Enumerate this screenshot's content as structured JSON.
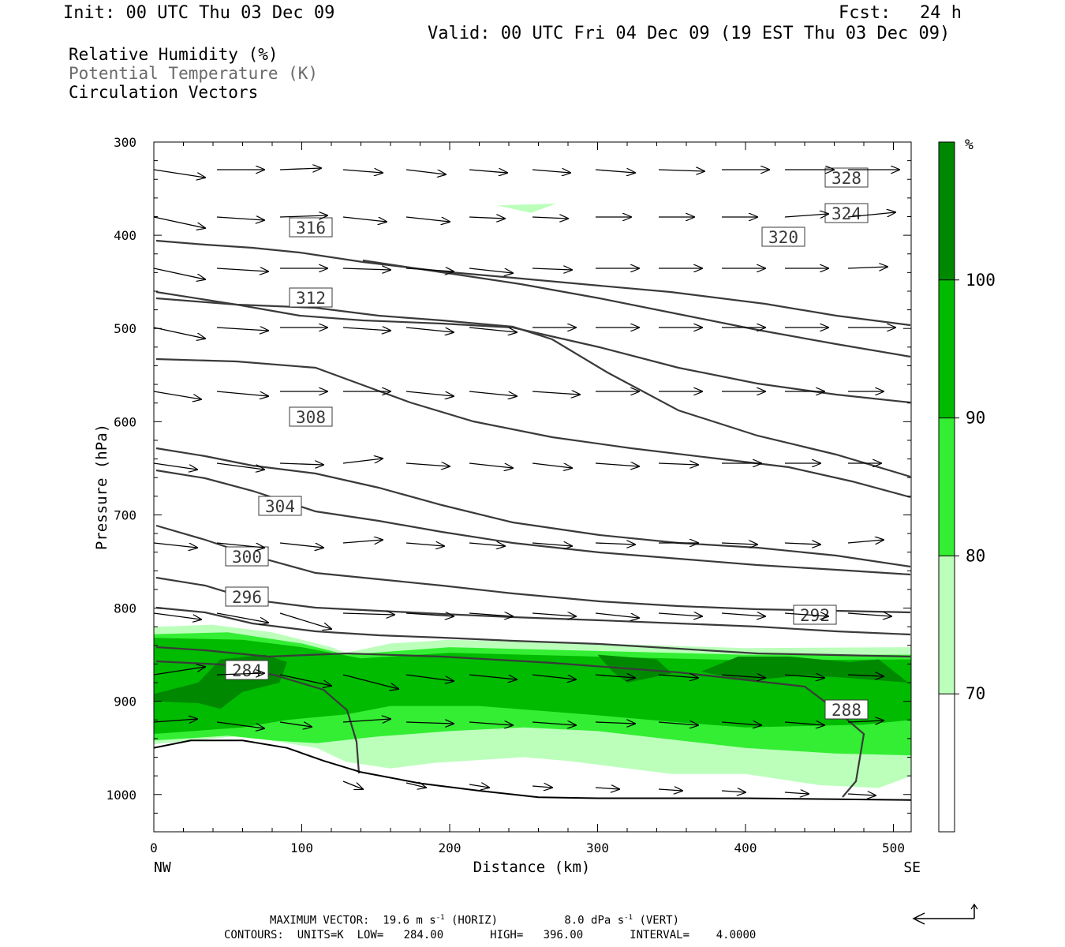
{
  "header": {
    "init": "Init: 00 UTC Thu 03 Dec 09",
    "fcst_label": "Fcst:",
    "fcst_value": "24 h",
    "valid": "Valid: 00 UTC Fri 04 Dec 09 (19 EST Thu 03 Dec 09)"
  },
  "fields": [
    "Relative Humidity (%)",
    "Potential Temperature (K)",
    "Circulation Vectors"
  ],
  "colorbar": {
    "unit": "%",
    "levels": [
      70,
      80,
      90,
      100
    ],
    "colors": [
      "#ffffff",
      "#bbffbb",
      "#33ee33",
      "#00bb00",
      "#008800"
    ]
  },
  "chart_data": {
    "type": "cross-section",
    "xlabel": "Distance (km)",
    "ylabel": "Pressure (hPa)",
    "xlim": [
      0,
      512
    ],
    "ylim": [
      1040,
      300
    ],
    "x_ticks": [
      0,
      100,
      200,
      300,
      400,
      500
    ],
    "y_ticks": [
      300,
      400,
      500,
      600,
      700,
      800,
      900,
      1000
    ],
    "x_end_labels": {
      "left": "NW",
      "right": "SE"
    },
    "surface": [
      [
        0,
        950
      ],
      [
        25,
        942
      ],
      [
        60,
        942
      ],
      [
        90,
        950
      ],
      [
        115,
        964
      ],
      [
        140,
        976
      ],
      [
        180,
        988
      ],
      [
        220,
        996
      ],
      [
        260,
        1003
      ],
      [
        300,
        1004
      ],
      [
        400,
        1004
      ],
      [
        512,
        1006
      ]
    ],
    "rh_fill": [
      {
        "level": 70,
        "polygon": [
          [
            0,
            820
          ],
          [
            40,
            818
          ],
          [
            80,
            826
          ],
          [
            120,
            842
          ],
          [
            130,
            848
          ],
          [
            160,
            838
          ],
          [
            200,
            834
          ],
          [
            300,
            838
          ],
          [
            400,
            843
          ],
          [
            512,
            842
          ],
          [
            512,
            980
          ],
          [
            490,
            993
          ],
          [
            450,
            990
          ],
          [
            400,
            978
          ],
          [
            350,
            978
          ],
          [
            280,
            964
          ],
          [
            250,
            960
          ],
          [
            190,
            966
          ],
          [
            160,
            972
          ],
          [
            130,
            965
          ],
          [
            110,
            950
          ],
          [
            90,
            945
          ],
          [
            60,
            937
          ],
          [
            0,
            946
          ]
        ]
      },
      {
        "level": 80,
        "polygon": [
          [
            0,
            828
          ],
          [
            50,
            826
          ],
          [
            100,
            838
          ],
          [
            130,
            850
          ],
          [
            200,
            842
          ],
          [
            300,
            846
          ],
          [
            400,
            850
          ],
          [
            512,
            850
          ],
          [
            512,
            958
          ],
          [
            460,
            956
          ],
          [
            400,
            950
          ],
          [
            300,
            932
          ],
          [
            250,
            928
          ],
          [
            200,
            932
          ],
          [
            150,
            938
          ],
          [
            110,
            945
          ],
          [
            80,
            942
          ],
          [
            50,
            937
          ],
          [
            0,
            942
          ]
        ]
      },
      {
        "level": 90,
        "polygon": [
          [
            0,
            832
          ],
          [
            60,
            834
          ],
          [
            100,
            842
          ],
          [
            140,
            854
          ],
          [
            200,
            848
          ],
          [
            300,
            852
          ],
          [
            400,
            856
          ],
          [
            512,
            855
          ],
          [
            512,
            920
          ],
          [
            480,
            925
          ],
          [
            400,
            928
          ],
          [
            350,
            922
          ],
          [
            300,
            915
          ],
          [
            220,
            905
          ],
          [
            160,
            905
          ],
          [
            130,
            914
          ],
          [
            90,
            920
          ],
          [
            60,
            928
          ],
          [
            0,
            935
          ]
        ]
      },
      {
        "level": 100,
        "polygon": [
          [
            0,
            892
          ],
          [
            30,
            880
          ],
          [
            45,
            855
          ],
          [
            75,
            850
          ],
          [
            90,
            858
          ],
          [
            85,
            880
          ],
          [
            60,
            890
          ],
          [
            45,
            908
          ],
          [
            30,
            902
          ],
          [
            0,
            900
          ]
        ]
      },
      {
        "level": 100,
        "polygon": [
          [
            300,
            850
          ],
          [
            340,
            855
          ],
          [
            350,
            870
          ],
          [
            320,
            880
          ],
          [
            310,
            868
          ]
        ]
      },
      {
        "level": 100,
        "polygon": [
          [
            370,
            868
          ],
          [
            395,
            852
          ],
          [
            430,
            852
          ],
          [
            470,
            858
          ],
          [
            490,
            855
          ],
          [
            510,
            880
          ],
          [
            470,
            875
          ],
          [
            440,
            872
          ],
          [
            400,
            878
          ]
        ]
      },
      {
        "level": 70,
        "polygon": [
          [
            232,
            368
          ],
          [
            272,
            366
          ],
          [
            255,
            376
          ]
        ]
      }
    ],
    "theta_contours": [
      {
        "value": 328,
        "points": [
          [
            198,
            305
          ],
          [
            260,
            310
          ],
          [
            320,
            314
          ],
          [
            380,
            320
          ],
          [
            460,
            332
          ],
          [
            560,
            344
          ],
          [
            650,
            352
          ],
          [
            760,
            362
          ],
          [
            850,
            370
          ],
          [
            970,
            385
          ],
          [
            1060,
            400
          ],
          [
            1154,
            412
          ]
        ],
        "label_at": [
          1073,
          225
        ]
      },
      {
        "value": 324,
        "points": [
          [
            460,
            330
          ],
          [
            560,
            345
          ],
          [
            660,
            360
          ],
          [
            760,
            378
          ],
          [
            860,
            398
          ],
          [
            960,
            418
          ],
          [
            1060,
            436
          ],
          [
            1154,
            452
          ]
        ],
        "label_at": [
          1073,
          270
        ]
      },
      {
        "value": 320,
        "points": [
          [
            198,
            370
          ],
          [
            300,
            386
          ],
          [
            380,
            400
          ],
          [
            460,
            406
          ],
          [
            560,
            410
          ],
          [
            650,
            415
          ],
          [
            760,
            440
          ],
          [
            860,
            466
          ],
          [
            960,
            486
          ],
          [
            1060,
            500
          ],
          [
            1154,
            510
          ]
        ],
        "label_at": [
          993,
          300
        ]
      },
      {
        "value": 316,
        "points": [
          [
            198,
            378
          ],
          [
            300,
            386
          ],
          [
            400,
            390
          ],
          [
            480,
            400
          ],
          [
            560,
            406
          ],
          [
            650,
            414
          ],
          [
            700,
            430
          ],
          [
            770,
            472
          ],
          [
            860,
            520
          ],
          [
            960,
            552
          ],
          [
            1060,
            576
          ],
          [
            1154,
            604
          ]
        ],
        "label_at": [
          394,
          288
        ]
      },
      {
        "value": 312,
        "points": [
          [
            198,
            455
          ],
          [
            300,
            458
          ],
          [
            400,
            466
          ],
          [
            460,
            488
          ],
          [
            520,
            510
          ],
          [
            600,
            534
          ],
          [
            700,
            554
          ],
          [
            800,
            568
          ],
          [
            900,
            580
          ],
          [
            1000,
            592
          ],
          [
            1080,
            610
          ],
          [
            1154,
            630
          ]
        ],
        "label_at": [
          394,
          377
        ]
      },
      {
        "value": 308,
        "points": [
          [
            198,
            568
          ],
          [
            260,
            578
          ],
          [
            320,
            590
          ],
          [
            400,
            600
          ],
          [
            480,
            618
          ],
          [
            560,
            640
          ],
          [
            650,
            662
          ],
          [
            760,
            678
          ],
          [
            860,
            688
          ],
          [
            960,
            694
          ],
          [
            1060,
            704
          ],
          [
            1154,
            718
          ]
        ],
        "label_at": [
          394,
          528
        ]
      },
      {
        "value": 304,
        "points": [
          [
            198,
            596
          ],
          [
            260,
            606
          ],
          [
            320,
            622
          ],
          [
            400,
            648
          ],
          [
            480,
            660
          ],
          [
            560,
            674
          ],
          [
            650,
            688
          ],
          [
            760,
            700
          ],
          [
            860,
            708
          ],
          [
            960,
            716
          ],
          [
            1060,
            722
          ],
          [
            1154,
            728
          ]
        ],
        "label_at": [
          355,
          641
        ]
      },
      {
        "value": 300,
        "points": [
          [
            198,
            666
          ],
          [
            260,
            684
          ],
          [
            320,
            704
          ],
          [
            400,
            726
          ],
          [
            480,
            734
          ],
          [
            560,
            742
          ],
          [
            650,
            752
          ],
          [
            760,
            762
          ],
          [
            860,
            768
          ],
          [
            960,
            772
          ],
          [
            1060,
            774
          ],
          [
            1154,
            776
          ]
        ],
        "label_at": [
          313,
          705
        ]
      },
      {
        "value": 296,
        "points": [
          [
            198,
            732
          ],
          [
            260,
            742
          ],
          [
            320,
            760
          ],
          [
            400,
            770
          ],
          [
            480,
            774
          ],
          [
            560,
            778
          ],
          [
            650,
            782
          ],
          [
            760,
            786
          ],
          [
            860,
            790
          ],
          [
            960,
            794
          ],
          [
            1060,
            800
          ],
          [
            1154,
            804
          ]
        ],
        "label_at": [
          313,
          756
        ]
      },
      {
        "value": 292,
        "points": [
          [
            198,
            770
          ],
          [
            260,
            776
          ],
          [
            320,
            790
          ],
          [
            400,
            800
          ],
          [
            480,
            805
          ],
          [
            560,
            808
          ],
          [
            650,
            812
          ],
          [
            760,
            816
          ],
          [
            860,
            822
          ],
          [
            960,
            828
          ],
          [
            1060,
            830
          ],
          [
            1154,
            832
          ]
        ],
        "label_at": [
          1033,
          779
        ]
      },
      {
        "value": 288,
        "points": [
          [
            198,
            820
          ],
          [
            260,
            824
          ],
          [
            340,
            832
          ],
          [
            440,
            828
          ],
          [
            560,
            832
          ],
          [
            700,
            840
          ],
          [
            860,
            852
          ],
          [
            1020,
            870
          ],
          [
            1060,
            900
          ],
          [
            1095,
            930
          ],
          [
            1085,
            990
          ],
          [
            1068,
            1010
          ]
        ],
        "label_at": [
          1073,
          899
        ]
      },
      {
        "value": 284,
        "points": [
          [
            198,
            838
          ],
          [
            280,
            842
          ],
          [
            350,
            856
          ],
          [
            410,
            874
          ],
          [
            440,
            900
          ],
          [
            452,
            940
          ],
          [
            455,
            980
          ]
        ],
        "label_at": [
          313,
          849
        ]
      }
    ],
    "vectors_note": "circulation vectors (horizontal + vertical components)",
    "max_vector": {
      "horiz": "19.6",
      "vert": "8.0"
    },
    "contour_info": {
      "units": "K",
      "low": "284.00",
      "high": "396.00",
      "interval": "4.0000"
    }
  },
  "footer": {
    "max_vector_line": "MAXIMUM VECTOR:  19.6 m s",
    "horiz": "(HORIZ)",
    "vert_value": "8.0 dPa s",
    "vert": "(VERT)",
    "contours_line": "CONTOURS:  UNITS=K  LOW=   284.00       HIGH=   396.00       INTERVAL=    4.0000"
  }
}
